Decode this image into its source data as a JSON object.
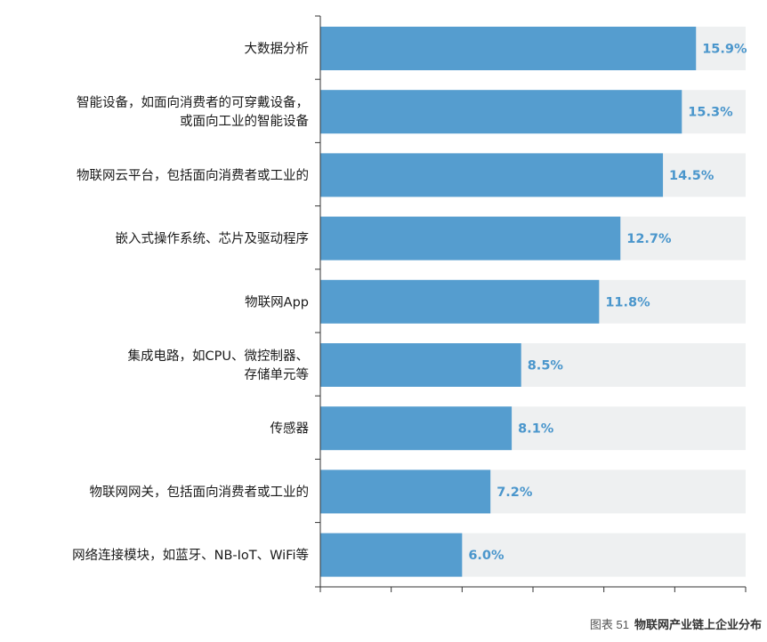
{
  "chart_data": {
    "type": "bar",
    "orientation": "horizontal",
    "categories": [
      [
        "大数据分析"
      ],
      [
        "智能设备，如面向消费者的可穿戴设备，",
        "或面向工业的智能设备"
      ],
      [
        "物联网云平台，包括面向消费者或工业的"
      ],
      [
        "嵌入式操作系统、芯片及驱动程序"
      ],
      [
        "物联网App"
      ],
      [
        "集成电路，如CPU、微控制器、",
        "存储单元等"
      ],
      [
        "传感器"
      ],
      [
        "物联网网关，包括面向消费者或工业的"
      ],
      [
        "网络连接模块，如蓝牙、NB-IoT、WiFi等"
      ]
    ],
    "values": [
      15.9,
      15.3,
      14.5,
      12.7,
      11.8,
      8.5,
      8.1,
      7.2,
      6.0
    ],
    "value_labels": [
      "15.9%",
      "15.3%",
      "14.5%",
      "12.7%",
      "11.8%",
      "8.5%",
      "8.1%",
      "7.2%",
      "6.0%"
    ],
    "xlim": [
      0,
      18
    ],
    "x_ticks": [
      0,
      3,
      6,
      9,
      12,
      15,
      18
    ],
    "grid": false,
    "legend": "none",
    "colors": {
      "bar": "#559dcf",
      "track": "#eef0f1",
      "value_label": "#4a96cc",
      "axis": "#333333"
    }
  },
  "caption": {
    "number": "图表 51",
    "title": "物联网产业链上企业分布"
  }
}
